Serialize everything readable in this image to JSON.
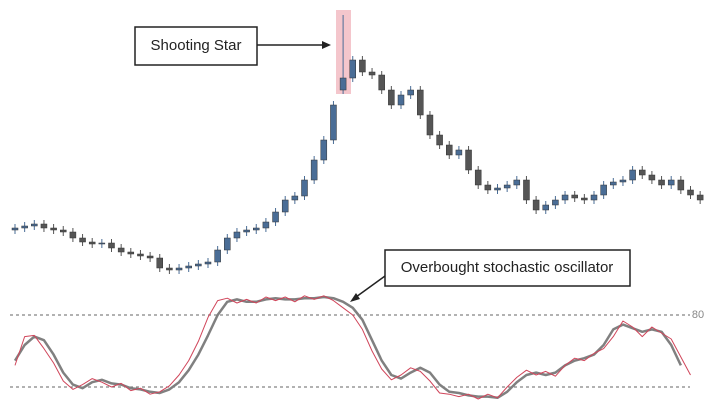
{
  "chart_data": [
    {
      "type": "candlestick",
      "annotation": "Shooting Star",
      "ylim": [
        0,
        290
      ],
      "up_color": "#4a6d96",
      "down_color": "#555555",
      "open": [
        60,
        62,
        64,
        66,
        62,
        60,
        58,
        52,
        48,
        46,
        47,
        42,
        38,
        36,
        34,
        32,
        22,
        20,
        22,
        24,
        26,
        28,
        40,
        52,
        58,
        60,
        62,
        68,
        78,
        90,
        94,
        110,
        130,
        150,
        200,
        212,
        230,
        218,
        215,
        200,
        185,
        195,
        200,
        175,
        155,
        145,
        135,
        140,
        120,
        105,
        100,
        102,
        105,
        110,
        90,
        80,
        85,
        90,
        95,
        92,
        90,
        95,
        105,
        108,
        110,
        120,
        115,
        110,
        105,
        110,
        100,
        95
      ],
      "high": [
        66,
        68,
        70,
        70,
        66,
        64,
        62,
        56,
        52,
        51,
        51,
        46,
        42,
        40,
        38,
        36,
        26,
        26,
        28,
        30,
        32,
        44,
        56,
        62,
        64,
        66,
        72,
        82,
        94,
        98,
        114,
        134,
        154,
        189,
        275,
        234,
        234,
        222,
        219,
        204,
        199,
        204,
        204,
        179,
        159,
        149,
        144,
        144,
        124,
        109,
        106,
        109,
        114,
        114,
        94,
        89,
        94,
        99,
        99,
        96,
        99,
        109,
        112,
        114,
        124,
        124,
        119,
        114,
        114,
        114,
        104,
        99
      ],
      "low": [
        56,
        58,
        60,
        58,
        56,
        54,
        48,
        44,
        42,
        42,
        38,
        34,
        32,
        30,
        28,
        18,
        16,
        16,
        18,
        20,
        22,
        24,
        36,
        48,
        54,
        56,
        58,
        64,
        74,
        86,
        90,
        106,
        126,
        146,
        196,
        208,
        214,
        211,
        196,
        181,
        181,
        191,
        171,
        151,
        141,
        131,
        131,
        116,
        101,
        96,
        96,
        98,
        101,
        86,
        76,
        76,
        81,
        86,
        88,
        86,
        86,
        91,
        101,
        104,
        106,
        111,
        106,
        101,
        101,
        96,
        91,
        86
      ],
      "close": [
        62,
        64,
        66,
        62,
        60,
        58,
        52,
        48,
        46,
        47,
        42,
        38,
        36,
        34,
        32,
        22,
        20,
        22,
        24,
        26,
        28,
        40,
        52,
        58,
        60,
        62,
        68,
        78,
        90,
        94,
        110,
        130,
        150,
        185,
        212,
        230,
        218,
        215,
        200,
        185,
        195,
        200,
        175,
        155,
        145,
        135,
        140,
        120,
        105,
        100,
        102,
        105,
        110,
        90,
        80,
        85,
        90,
        95,
        92,
        90,
        95,
        105,
        108,
        110,
        120,
        115,
        110,
        105,
        110,
        100,
        95,
        90
      ]
    },
    {
      "type": "line",
      "annotation": "Overbought stochastic oscillator",
      "ylim": [
        5,
        100
      ],
      "yticks": [
        80
      ],
      "levels": [
        20,
        80
      ],
      "series": [
        {
          "color": "#d0455a",
          "values": [
            38,
            62,
            63,
            52,
            40,
            25,
            18,
            22,
            27,
            24,
            20,
            23,
            17,
            19,
            14,
            16,
            21,
            30,
            42,
            58,
            78,
            92,
            94,
            90,
            93,
            90,
            95,
            92,
            95,
            91,
            96,
            93,
            96,
            92,
            86,
            80,
            68,
            50,
            35,
            26,
            30,
            36,
            33,
            25,
            15,
            14,
            12,
            14,
            10,
            14,
            11,
            20,
            28,
            34,
            30,
            33,
            29,
            38,
            44,
            42,
            48,
            52,
            62,
            75,
            70,
            62,
            70,
            65,
            60,
            45,
            30,
            null
          ]
        },
        {
          "color": "#808080",
          "values": [
            42,
            55,
            62,
            59,
            47,
            32,
            22,
            19,
            24,
            26,
            23,
            22,
            19,
            18,
            16,
            15,
            18,
            24,
            34,
            47,
            63,
            80,
            91,
            93,
            91,
            91,
            93,
            94,
            93,
            93,
            94,
            94,
            95,
            94,
            91,
            86,
            76,
            59,
            42,
            30,
            27,
            32,
            36,
            32,
            22,
            16,
            15,
            13,
            12,
            12,
            11,
            16,
            24,
            30,
            32,
            30,
            32,
            38,
            42,
            44,
            47,
            55,
            68,
            72,
            69,
            66,
            68,
            66,
            55,
            38,
            null,
            null
          ]
        }
      ]
    }
  ]
}
